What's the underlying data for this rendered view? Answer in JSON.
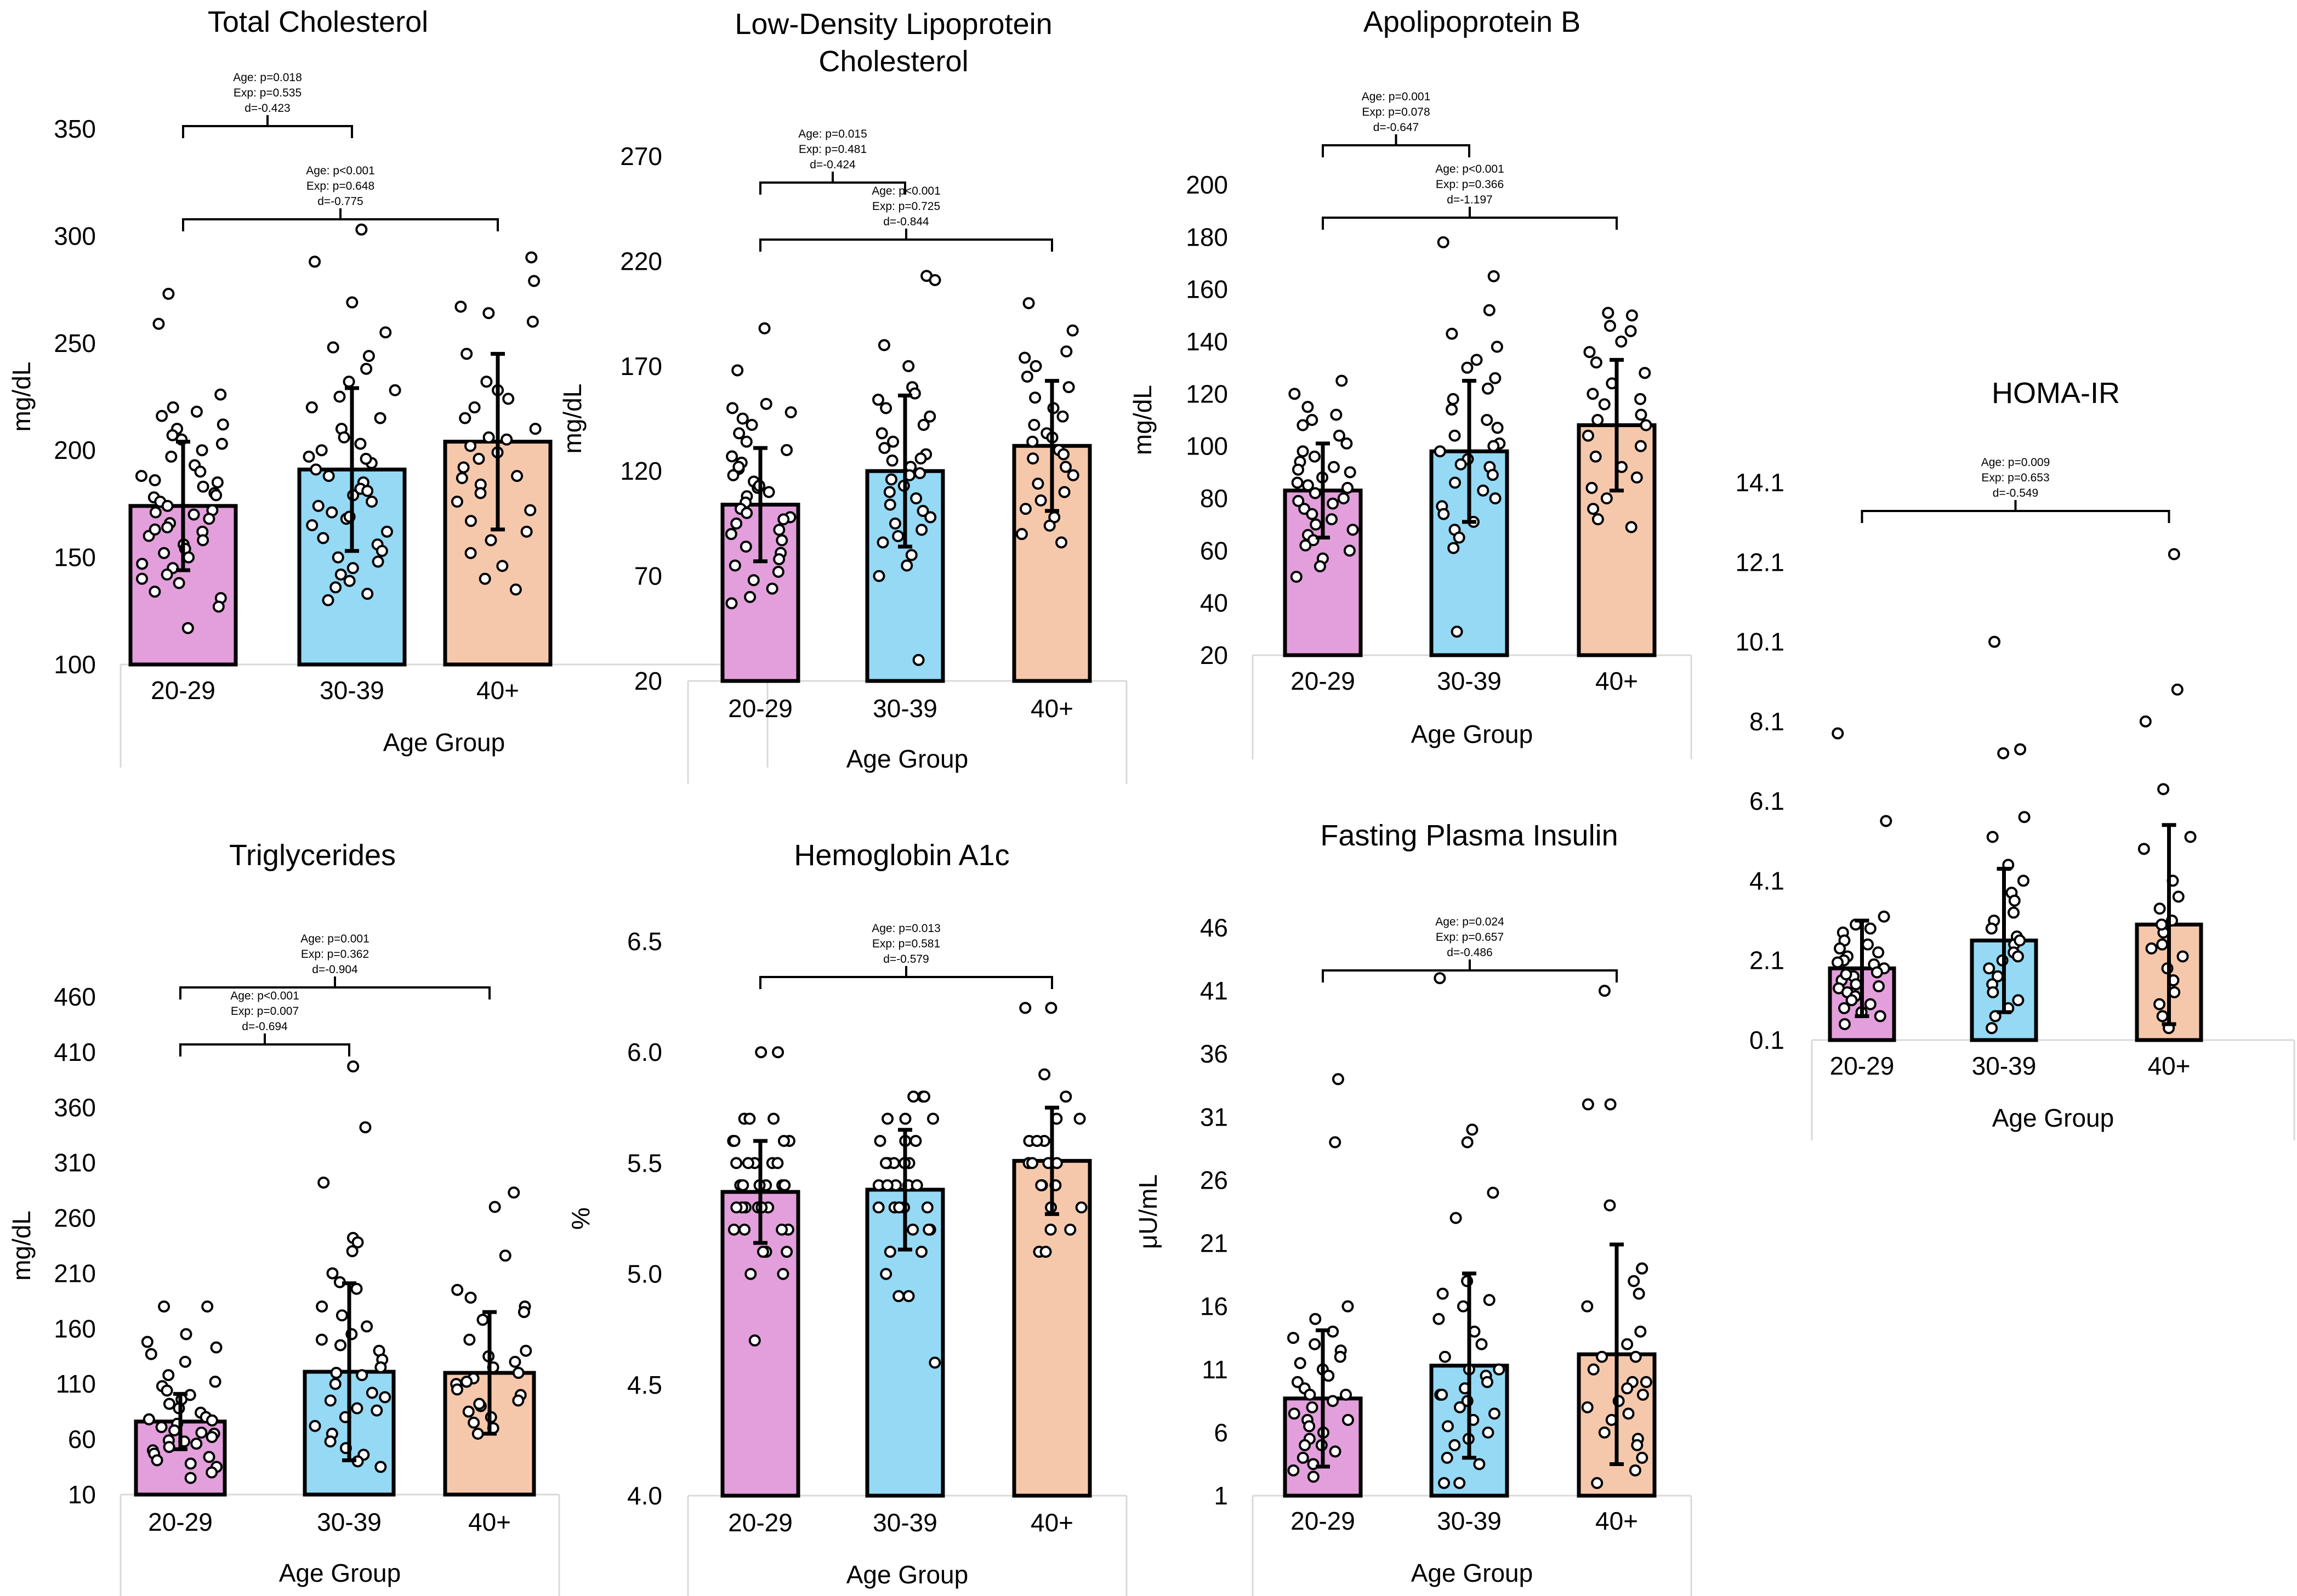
{
  "colors": {
    "20-29": "#e39fdc",
    "30-39": "#95d9f5",
    "40+": "#f6c8ab"
  },
  "chart_data": [
    {
      "id": "tc",
      "type": "bar",
      "title": [
        "Total Cholesterol"
      ],
      "ylabel": "mg/dL",
      "xlabel": "Age Group",
      "categories": [
        "20-29",
        "30-39",
        "40+"
      ],
      "ylim": [
        100,
        350
      ],
      "yticks": [
        "350",
        "300",
        "250",
        "200",
        "150",
        "100"
      ],
      "means": [
        174,
        191,
        204
      ],
      "sd": [
        30,
        38,
        41
      ],
      "points": [
        [
          273,
          259,
          226,
          220,
          218,
          216,
          212,
          210,
          207,
          205,
          203,
          200,
          197,
          193,
          190,
          188,
          185,
          183,
          180,
          178,
          176,
          174,
          172,
          170,
          168,
          166,
          164,
          162,
          160,
          158,
          156,
          154,
          152,
          150,
          147,
          145,
          142,
          140,
          138,
          134,
          131,
          127,
          117,
          171,
          163,
          179,
          186
        ],
        [
          303,
          288,
          269,
          255,
          248,
          244,
          238,
          232,
          228,
          225,
          220,
          215,
          210,
          206,
          203,
          200,
          197,
          194,
          191,
          188,
          185,
          182,
          179,
          176,
          174,
          171,
          168,
          165,
          162,
          159,
          156,
          153,
          150,
          148,
          145,
          142,
          139,
          136,
          133,
          130,
          196,
          181,
          169
        ],
        [
          290,
          279,
          267,
          264,
          260,
          245,
          232,
          228,
          224,
          220,
          215,
          210,
          206,
          202,
          199,
          196,
          192,
          188,
          184,
          180,
          176,
          172,
          167,
          162,
          158,
          152,
          146,
          140,
          135,
          205,
          187
        ]
      ],
      "brackets": [
        {
          "from": 0,
          "to": 1,
          "lines": [
            "Age: p=0.018",
            "Exp: p=0.535",
            "d=-0.423"
          ]
        },
        {
          "from": 0,
          "to": 2,
          "lines": [
            "Age: p<0.001",
            "Exp: p=0.648",
            "d=-0.775"
          ]
        }
      ]
    },
    {
      "id": "ldl",
      "type": "bar",
      "title": [
        "Low-Density Lipoprotein",
        "Cholesterol"
      ],
      "ylabel": "mg/dL",
      "xlabel": "Age Group",
      "categories": [
        "20-29",
        "30-39",
        "40+"
      ],
      "ylim": [
        20,
        270
      ],
      "yticks": [
        "270",
        "220",
        "170",
        "120",
        "70",
        "20"
      ],
      "means": [
        104,
        120,
        132
      ],
      "sd": [
        27,
        36,
        31
      ],
      "points": [
        [
          188,
          168,
          152,
          150,
          148,
          145,
          142,
          138,
          134,
          130,
          127,
          124,
          121,
          118,
          115,
          112,
          110,
          108,
          105,
          102,
          100,
          98,
          95,
          92,
          90,
          87,
          84,
          81,
          78,
          75,
          72,
          68,
          64,
          60,
          57,
          113,
          97,
          122
        ],
        [
          213,
          211,
          180,
          170,
          160,
          157,
          154,
          150,
          146,
          142,
          138,
          134,
          131,
          128,
          125,
          122,
          119,
          116,
          113,
          110,
          107,
          104,
          101,
          98,
          95,
          92,
          89,
          86,
          80,
          75,
          70,
          30,
          126,
          118
        ],
        [
          200,
          187,
          177,
          174,
          170,
          165,
          160,
          155,
          150,
          146,
          142,
          138,
          134,
          130,
          126,
          122,
          118,
          114,
          110,
          106,
          102,
          98,
          94,
          90,
          86,
          128,
          136
        ]
      ],
      "brackets": [
        {
          "from": 0,
          "to": 1,
          "lines": [
            "Age: p=0.015",
            "Exp: p=0.481",
            "d=-0.424"
          ]
        },
        {
          "from": 0,
          "to": 2,
          "lines": [
            "Age: p<0.001",
            "Exp: p=0.725",
            "d=-0.844"
          ]
        }
      ]
    },
    {
      "id": "apob",
      "type": "bar",
      "title": [
        "Apolipoprotein B"
      ],
      "ylabel": "mg/dL",
      "xlabel": "Age Group",
      "categories": [
        "20-29",
        "30-39",
        "40+"
      ],
      "ylim": [
        20,
        200
      ],
      "yticks": [
        "200",
        "180",
        "160",
        "140",
        "120",
        "100",
        "80",
        "60",
        "40",
        "20"
      ],
      "means": [
        83,
        98,
        108
      ],
      "sd": [
        18,
        27,
        25
      ],
      "points": [
        [
          125,
          120,
          115,
          112,
          110,
          108,
          104,
          101,
          98,
          96,
          94,
          92,
          90,
          88,
          86,
          84,
          82,
          80,
          78,
          76,
          74,
          72,
          70,
          68,
          66,
          64,
          62,
          60,
          57,
          54,
          50,
          85,
          79,
          91
        ],
        [
          178,
          165,
          152,
          143,
          138,
          133,
          130,
          126,
          122,
          118,
          114,
          110,
          107,
          104,
          101,
          98,
          95,
          92,
          89,
          86,
          83,
          80,
          77,
          74,
          71,
          68,
          65,
          61,
          29,
          100,
          93
        ],
        [
          151,
          150,
          146,
          144,
          140,
          136,
          132,
          128,
          124,
          120,
          116,
          112,
          108,
          104,
          100,
          96,
          92,
          88,
          84,
          80,
          76,
          72,
          69,
          110,
          118
        ]
      ],
      "brackets": [
        {
          "from": 0,
          "to": 1,
          "lines": [
            "Age: p=0.001",
            "Exp: p=0.078",
            "d=-0.647"
          ]
        },
        {
          "from": 0,
          "to": 2,
          "lines": [
            "Age: p<0.001",
            "Exp: p=0.366",
            "d=-1.197"
          ]
        }
      ]
    },
    {
      "id": "homa",
      "type": "bar",
      "title": [
        "HOMA-IR"
      ],
      "ylabel": "",
      "xlabel": "Age Group",
      "categories": [
        "20-29",
        "30-39",
        "40+"
      ],
      "ylim": [
        0.1,
        14.1
      ],
      "yticks": [
        "14.1",
        "12.1",
        "10.1",
        "8.1",
        "6.1",
        "4.1",
        "2.1",
        "0.1"
      ],
      "means": [
        1.9,
        2.6,
        3.0
      ],
      "sd": [
        1.2,
        1.8,
        2.5
      ],
      "points": [
        [
          7.8,
          5.6,
          3.2,
          3.0,
          2.9,
          2.8,
          2.6,
          2.5,
          2.4,
          2.3,
          2.2,
          2.1,
          2.0,
          1.9,
          1.8,
          1.7,
          1.6,
          1.5,
          1.4,
          1.3,
          1.2,
          1.1,
          1.0,
          0.9,
          0.8,
          0.7,
          0.5,
          2.05,
          1.75,
          1.45
        ],
        [
          10.1,
          7.4,
          7.3,
          5.7,
          5.2,
          4.5,
          4.1,
          3.8,
          3.6,
          3.3,
          3.1,
          2.9,
          2.7,
          2.5,
          2.3,
          2.1,
          1.9,
          1.7,
          1.5,
          1.3,
          1.1,
          0.9,
          0.7,
          0.4,
          2.6,
          2.2
        ],
        [
          12.3,
          8.9,
          8.1,
          6.4,
          5.2,
          4.9,
          4.1,
          3.7,
          3.4,
          3.1,
          2.8,
          2.5,
          2.2,
          1.9,
          1.6,
          1.3,
          1.0,
          0.7,
          0.4,
          3.0,
          2.4
        ]
      ],
      "brackets": [
        {
          "from": 0,
          "to": 2,
          "lines": [
            "Age: p=0.009",
            "Exp: p=0.653",
            "d=-0.549"
          ]
        }
      ]
    },
    {
      "id": "tg",
      "type": "bar",
      "title": [
        "Triglycerides"
      ],
      "ylabel": "mg/dL",
      "xlabel": "Age Group",
      "categories": [
        "20-29",
        "30-39",
        "40+"
      ],
      "ylim": [
        10,
        460
      ],
      "yticks": [
        "460",
        "410",
        "360",
        "310",
        "260",
        "210",
        "160",
        "110",
        "60",
        "10"
      ],
      "means": [
        76,
        121,
        120
      ],
      "sd": [
        25,
        80,
        55
      ],
      "points": [
        [
          180,
          180,
          155,
          148,
          143,
          137,
          130,
          118,
          112,
          108,
          104,
          100,
          96,
          92,
          88,
          84,
          80,
          77,
          74,
          71,
          68,
          65,
          62,
          59,
          56,
          53,
          50,
          47,
          44,
          41,
          38,
          35,
          30,
          25,
          78,
          66,
          58
        ],
        [
          397,
          342,
          292,
          242,
          238,
          230,
          210,
          202,
          196,
          180,
          172,
          162,
          155,
          150,
          145,
          140,
          132,
          125,
          118,
          110,
          102,
          95,
          88,
          80,
          72,
          65,
          58,
          52,
          46,
          40,
          35,
          120,
          98,
          86
        ],
        [
          283,
          270,
          226,
          195,
          188,
          180,
          175,
          168,
          150,
          140,
          135,
          130,
          125,
          120,
          115,
          110,
          105,
          100,
          95,
          90,
          85,
          80,
          75,
          70,
          65,
          112,
          92
        ]
      ],
      "brackets": [
        {
          "from": 0,
          "to": 1,
          "lines": [
            "Age: p<0.001",
            "Exp: p=0.007",
            "d=-0.694"
          ]
        },
        {
          "from": 0,
          "to": 2,
          "lines": [
            "Age: p=0.001",
            "Exp: p=0.362",
            "d=-0.904"
          ]
        }
      ]
    },
    {
      "id": "hba1c",
      "type": "bar",
      "title": [
        "Hemoglobin A1c"
      ],
      "ylabel": "%",
      "xlabel": "Age Group",
      "categories": [
        "20-29",
        "30-39",
        "40+"
      ],
      "ylim": [
        4.0,
        6.5
      ],
      "yticks": [
        "6.5",
        "6.0",
        "5.5",
        "5.0",
        "4.5",
        "4.0"
      ],
      "means": [
        5.37,
        5.38,
        5.51
      ],
      "sd": [
        0.23,
        0.27,
        0.24
      ],
      "points": [
        [
          6.0,
          6.0,
          5.7,
          5.7,
          5.7,
          5.6,
          5.6,
          5.6,
          5.6,
          5.5,
          5.5,
          5.5,
          5.5,
          5.5,
          5.4,
          5.4,
          5.4,
          5.4,
          5.4,
          5.3,
          5.3,
          5.3,
          5.3,
          5.3,
          5.2,
          5.2,
          5.2,
          5.2,
          5.1,
          5.1,
          5.1,
          5.0,
          5.0,
          4.7,
          5.6,
          5.4,
          5.3
        ],
        [
          5.8,
          5.8,
          5.8,
          5.7,
          5.7,
          5.7,
          5.6,
          5.6,
          5.6,
          5.5,
          5.5,
          5.5,
          5.5,
          5.4,
          5.4,
          5.4,
          5.4,
          5.3,
          5.3,
          5.3,
          5.3,
          5.2,
          5.2,
          5.2,
          5.1,
          5.1,
          5.0,
          4.9,
          4.9,
          4.6,
          5.4,
          5.5,
          5.3
        ],
        [
          6.2,
          6.2,
          5.9,
          5.8,
          5.7,
          5.7,
          5.6,
          5.6,
          5.5,
          5.5,
          5.5,
          5.4,
          5.4,
          5.4,
          5.3,
          5.3,
          5.2,
          5.2,
          5.1,
          5.1,
          5.6,
          5.5,
          5.4
        ]
      ],
      "brackets": [
        {
          "from": 0,
          "to": 2,
          "lines": [
            "Age: p=0.013",
            "Exp: p=0.581",
            "d=-0.579"
          ]
        }
      ]
    },
    {
      "id": "fpi",
      "type": "bar",
      "title": [
        "Fasting Plasma Insulin"
      ],
      "ylabel": "μU/mL",
      "xlabel": "Age Group",
      "categories": [
        "20-29",
        "30-39",
        "40+"
      ],
      "ylim": [
        1,
        46
      ],
      "yticks": [
        "46",
        "41",
        "36",
        "31",
        "26",
        "21",
        "16",
        "11",
        "6",
        "1"
      ],
      "means": [
        8.7,
        11.3,
        12.2
      ],
      "sd": [
        5.4,
        7.3,
        8.7
      ],
      "points": [
        [
          34,
          29,
          16,
          15,
          14,
          13.5,
          13,
          12.5,
          12,
          11.5,
          11,
          10.5,
          10,
          9.5,
          9,
          8.5,
          8,
          7.5,
          7,
          6.5,
          6,
          5.5,
          5,
          4.5,
          4,
          3.5,
          3,
          2.5,
          9,
          7,
          5
        ],
        [
          42,
          30,
          29,
          25,
          23,
          18,
          17,
          16.5,
          16,
          15,
          14,
          13,
          12,
          11,
          10.5,
          10,
          9.5,
          9,
          8.5,
          8,
          7.5,
          7,
          6.5,
          6,
          5.5,
          5,
          4,
          3.5,
          2,
          2,
          11,
          9
        ],
        [
          41,
          32,
          32,
          24,
          19,
          19,
          18,
          17,
          16,
          14,
          13,
          12,
          11,
          10,
          9.5,
          9,
          8.5,
          8,
          7.5,
          7,
          6,
          5.5,
          5,
          4,
          3,
          2,
          12,
          10
        ]
      ],
      "brackets": [
        {
          "from": 0,
          "to": 2,
          "lines": [
            "Age: p=0.024",
            "Exp: p=0.657",
            "d=-0.486"
          ]
        }
      ]
    }
  ]
}
